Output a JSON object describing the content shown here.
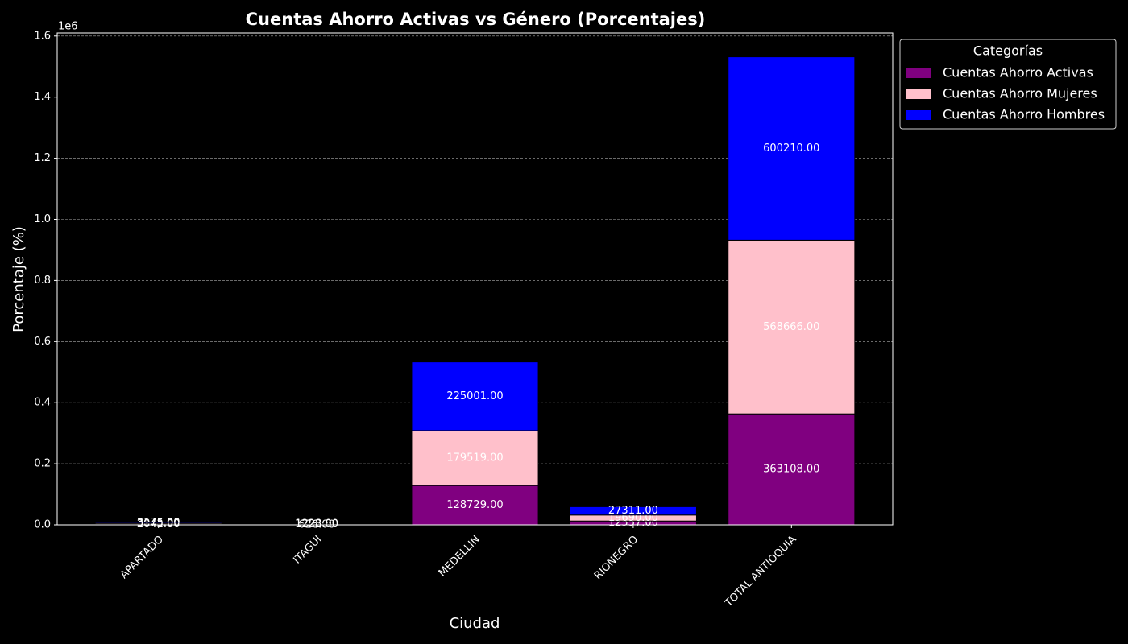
{
  "chart_data": {
    "type": "bar",
    "stacked": true,
    "title": "Cuentas Ahorro Activas vs Género (Porcentajes)",
    "x_label": "Ciudad",
    "y_label": "Porcentaje (%)",
    "y_offset_label": "1e6",
    "categories": [
      "APARTADO",
      "ITAGUI",
      "MEDELLIN",
      "RIONEGRO",
      "TOTAL ANTIOQUIA"
    ],
    "series": [
      {
        "name": "Cuentas Ahorro Activas",
        "color": "#800080",
        "values": [
          2042,
          626,
          128729,
          12557,
          363108
        ],
        "value_labels": [
          "2042.00",
          "626.00",
          "128729.00",
          "12557.00",
          "363108.00"
        ]
      },
      {
        "name": "Cuentas Ahorro Mujeres",
        "color": "#ffc0cb",
        "values": [
          3045,
          1202,
          179519,
          19690,
          568666
        ],
        "value_labels": [
          "3045.00",
          "1202.00",
          "179519.00",
          "19690.00",
          "568666.00"
        ]
      },
      {
        "name": "Cuentas Ahorro Hombres",
        "color": "#0000ff",
        "values": [
          3175,
          1228,
          225001,
          27311,
          600210
        ],
        "value_labels": [
          "3175.00",
          "1228.00",
          "225001.00",
          "27311.00",
          "600210.00"
        ]
      }
    ],
    "legend_title": "Categorías",
    "legend": "upper right outside",
    "ylim": [
      0,
      1610000
    ],
    "yticks": [
      {
        "value": 0,
        "label": "0.0"
      },
      {
        "value": 200000,
        "label": "0.2"
      },
      {
        "value": 400000,
        "label": "0.4"
      },
      {
        "value": 600000,
        "label": "0.6"
      },
      {
        "value": 800000,
        "label": "0.8"
      },
      {
        "value": 1000000,
        "label": "1.0"
      },
      {
        "value": 1200000,
        "label": "1.2"
      },
      {
        "value": 1400000,
        "label": "1.4"
      },
      {
        "value": 1600000,
        "label": "1.6"
      }
    ],
    "grid": true
  }
}
